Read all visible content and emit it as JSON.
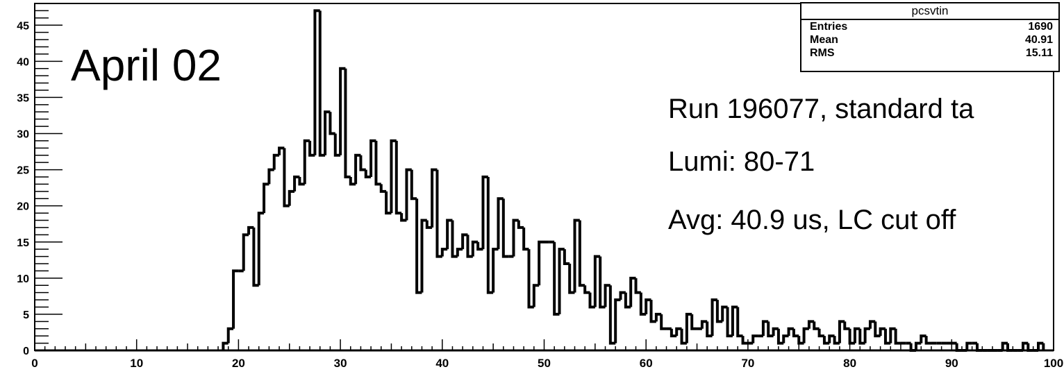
{
  "annotations": {
    "date_label": "April 02",
    "run_note": "Run 196077, standard ta",
    "lumi_note": "Lumi: 80-71",
    "avg_note": "Avg: 40.9 us, LC cut off"
  },
  "stats_box": {
    "title": "pcsvtin",
    "rows": [
      {
        "label": "Entries",
        "value": "1690"
      },
      {
        "label": "Mean",
        "value": "40.91"
      },
      {
        "label": "RMS",
        "value": "15.11"
      }
    ]
  },
  "chart_data": {
    "type": "bar",
    "style": "step-histogram",
    "title": "",
    "xlabel": "",
    "ylabel": "",
    "xlim": [
      0,
      100
    ],
    "ylim": [
      0,
      48
    ],
    "x_ticks": [
      0,
      10,
      20,
      30,
      40,
      50,
      60,
      70,
      80,
      90,
      100
    ],
    "y_ticks": [
      0,
      5,
      10,
      15,
      20,
      25,
      30,
      35,
      40,
      45
    ],
    "bin_width": 0.5,
    "x_start": 18.5,
    "values": [
      1,
      3,
      11,
      11,
      16,
      17,
      9,
      19,
      23,
      25,
      27,
      28,
      20,
      22,
      24,
      23,
      29,
      27,
      47,
      27,
      33,
      30,
      27,
      39,
      24,
      23,
      27,
      25,
      24,
      29,
      23,
      22,
      19,
      29,
      19,
      18,
      25,
      21,
      8,
      18,
      17,
      25,
      13,
      14,
      18,
      13,
      14,
      16,
      13,
      15,
      14,
      24,
      8,
      14,
      21,
      13,
      13,
      18,
      17,
      14,
      6,
      9,
      15,
      15,
      15,
      5,
      14,
      12,
      8,
      18,
      9,
      8,
      6,
      13,
      6,
      9,
      1,
      7,
      8,
      6,
      10,
      8,
      5,
      7,
      4,
      5,
      3,
      3,
      2,
      3,
      1,
      5,
      3,
      3,
      4,
      2,
      7,
      4,
      6,
      2,
      6,
      2,
      1,
      1,
      2,
      2,
      4,
      2,
      3,
      1,
      2,
      3,
      2,
      1,
      3,
      4,
      3,
      2,
      1,
      2,
      1,
      4,
      3,
      1,
      3,
      1,
      3,
      4,
      2,
      3,
      1,
      3,
      1,
      1,
      1,
      0,
      1,
      2,
      1,
      1,
      1,
      1,
      1,
      1,
      0,
      0,
      1,
      1,
      0,
      0,
      0,
      0,
      0,
      1,
      0,
      0,
      0,
      1,
      0,
      0,
      1
    ],
    "grid": false,
    "legend": "none"
  }
}
